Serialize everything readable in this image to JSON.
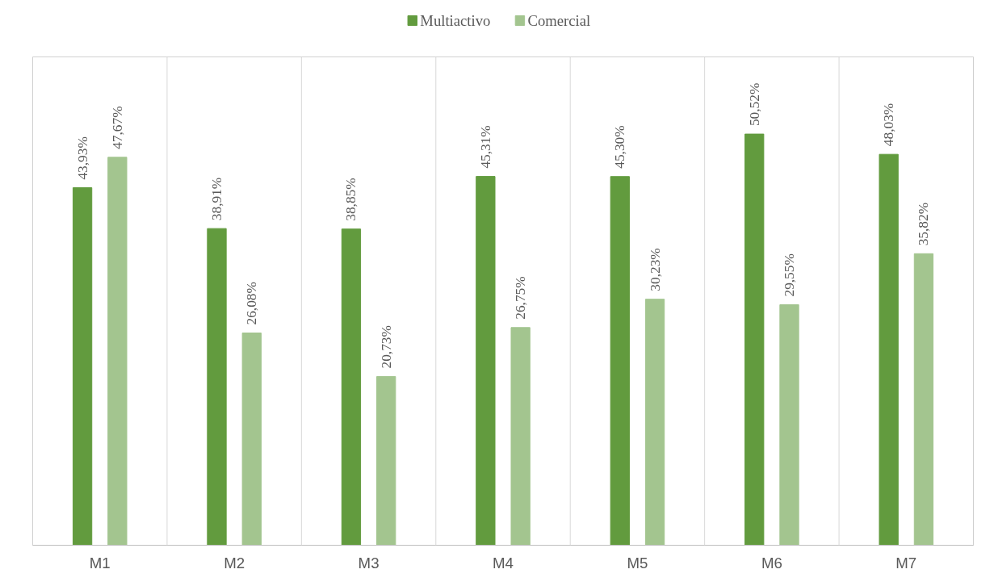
{
  "chart_data": {
    "type": "bar",
    "categories": [
      "M1",
      "M2",
      "M3",
      "M4",
      "M5",
      "M6",
      "M7"
    ],
    "series": [
      {
        "name": "Multiactivo",
        "color": "#629b3e",
        "values": [
          43.93,
          38.91,
          38.85,
          45.31,
          45.3,
          50.52,
          48.03
        ],
        "value_labels": [
          "43,93%",
          "38,91%",
          "38,85%",
          "45,31%",
          "45,30%",
          "50,52%",
          "48,03%"
        ]
      },
      {
        "name": "Comercial",
        "color": "#a3c58f",
        "values": [
          47.67,
          26.08,
          20.73,
          26.75,
          30.23,
          29.55,
          35.82
        ],
        "value_labels": [
          "47,67%",
          "26,08%",
          "20,73%",
          "26,75%",
          "30,23%",
          "29,55%",
          "35,82%"
        ]
      }
    ],
    "ylim": [
      0,
      60
    ],
    "grid": "x",
    "legend": "top",
    "tick_labels": "x"
  }
}
